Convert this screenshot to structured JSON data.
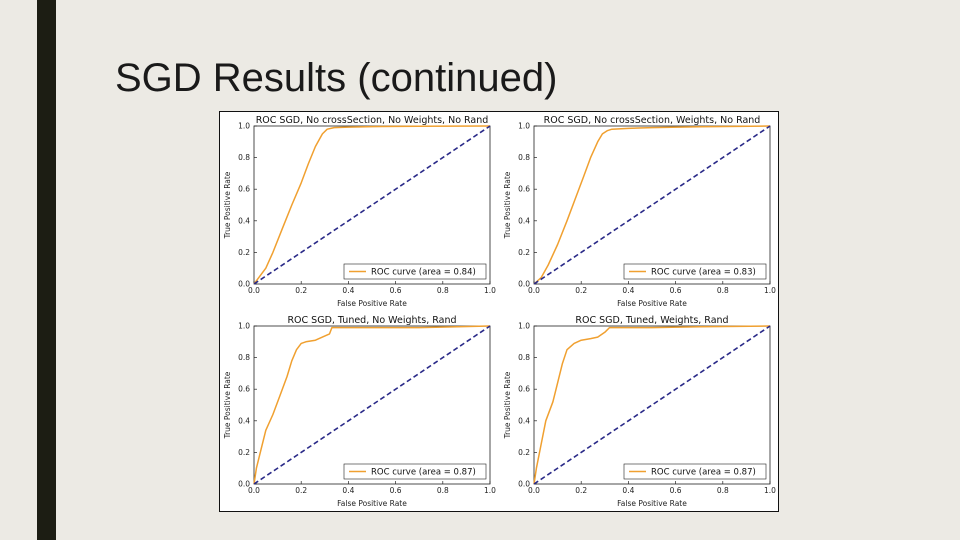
{
  "slide": {
    "title": "SGD Results (continued)"
  },
  "colors": {
    "background": "#ECEAE4",
    "side_bar": "#1C1D13",
    "roc": "#F0A030",
    "chance": "#2A2A88"
  },
  "chart_data": [
    {
      "type": "line",
      "title": "ROC SGD, No crossSection, No Weights, No Rand",
      "xlabel": "False Positive Rate",
      "ylabel": "True Positive Rate",
      "xlim": [
        0,
        1
      ],
      "ylim": [
        0,
        1
      ],
      "xticks": [
        "0.0",
        "0.2",
        "0.4",
        "0.6",
        "0.8",
        "1.0"
      ],
      "yticks": [
        "0.0",
        "0.2",
        "0.4",
        "0.6",
        "0.8",
        "1.0"
      ],
      "grid": false,
      "legend": "lower-right",
      "series": [
        {
          "name": "ROC curve (area = 0.84)",
          "color": "#F0A030",
          "x": [
            0,
            0.02,
            0.05,
            0.08,
            0.12,
            0.16,
            0.2,
            0.23,
            0.26,
            0.29,
            0.31,
            0.34,
            0.4,
            0.5,
            0.7,
            1.0
          ],
          "y": [
            0,
            0.04,
            0.1,
            0.2,
            0.35,
            0.5,
            0.64,
            0.76,
            0.87,
            0.95,
            0.98,
            0.99,
            0.993,
            0.996,
            0.998,
            1.0
          ]
        },
        {
          "name": "",
          "color": "#2A2A88",
          "dashed": true,
          "x": [
            0,
            1
          ],
          "y": [
            0,
            1
          ]
        }
      ]
    },
    {
      "type": "line",
      "title": "ROC SGD, No crossSection, Weights, No Rand",
      "xlabel": "False Positive Rate",
      "ylabel": "True Positive Rate",
      "xlim": [
        0,
        1
      ],
      "ylim": [
        0,
        1
      ],
      "xticks": [
        "0.0",
        "0.2",
        "0.4",
        "0.6",
        "0.8",
        "1.0"
      ],
      "yticks": [
        "0.0",
        "0.2",
        "0.4",
        "0.6",
        "0.8",
        "1.0"
      ],
      "grid": false,
      "legend": "lower-right",
      "series": [
        {
          "name": "ROC curve (area = 0.83)",
          "color": "#F0A030",
          "x": [
            0,
            0.03,
            0.06,
            0.1,
            0.14,
            0.18,
            0.21,
            0.24,
            0.27,
            0.29,
            0.31,
            0.33,
            0.4,
            0.5,
            0.7,
            1.0
          ],
          "y": [
            0,
            0.04,
            0.12,
            0.25,
            0.4,
            0.56,
            0.68,
            0.8,
            0.9,
            0.95,
            0.97,
            0.98,
            0.985,
            0.99,
            0.995,
            1.0
          ]
        },
        {
          "name": "",
          "color": "#2A2A88",
          "dashed": true,
          "x": [
            0,
            1
          ],
          "y": [
            0,
            1
          ]
        }
      ]
    },
    {
      "type": "line",
      "title": "ROC SGD, Tuned, No Weights, Rand",
      "xlabel": "False Positive Rate",
      "ylabel": "True Positive Rate",
      "xlim": [
        0,
        1
      ],
      "ylim": [
        0,
        1
      ],
      "xticks": [
        "0.0",
        "0.2",
        "0.4",
        "0.6",
        "0.8",
        "1.0"
      ],
      "yticks": [
        "0.0",
        "0.2",
        "0.4",
        "0.6",
        "0.8",
        "1.0"
      ],
      "grid": false,
      "legend": "lower-right",
      "series": [
        {
          "name": "ROC curve (area = 0.87)",
          "color": "#F0A030",
          "x": [
            0,
            0.01,
            0.03,
            0.05,
            0.08,
            0.11,
            0.14,
            0.16,
            0.18,
            0.2,
            0.22,
            0.26,
            0.29,
            0.32,
            0.33,
            0.5,
            0.7,
            1.0
          ],
          "y": [
            0,
            0.1,
            0.22,
            0.34,
            0.44,
            0.56,
            0.68,
            0.78,
            0.85,
            0.89,
            0.9,
            0.91,
            0.93,
            0.95,
            0.99,
            0.99,
            0.99,
            1.0
          ]
        },
        {
          "name": "",
          "color": "#2A2A88",
          "dashed": true,
          "x": [
            0,
            1
          ],
          "y": [
            0,
            1
          ]
        }
      ]
    },
    {
      "type": "line",
      "title": "ROC SGD, Tuned, Weights, Rand",
      "xlabel": "False Positive Rate",
      "ylabel": "True Positive Rate",
      "xlim": [
        0,
        1
      ],
      "ylim": [
        0,
        1
      ],
      "xticks": [
        "0.0",
        "0.2",
        "0.4",
        "0.6",
        "0.8",
        "1.0"
      ],
      "yticks": [
        "0.0",
        "0.2",
        "0.4",
        "0.6",
        "0.8",
        "1.0"
      ],
      "grid": false,
      "legend": "lower-right",
      "series": [
        {
          "name": "ROC curve (area = 0.87)",
          "color": "#F0A030",
          "x": [
            0,
            0.01,
            0.03,
            0.05,
            0.08,
            0.1,
            0.12,
            0.14,
            0.17,
            0.2,
            0.24,
            0.27,
            0.3,
            0.32,
            0.5,
            0.7,
            1.0
          ],
          "y": [
            0,
            0.1,
            0.25,
            0.4,
            0.52,
            0.64,
            0.76,
            0.85,
            0.89,
            0.91,
            0.92,
            0.93,
            0.96,
            0.99,
            0.99,
            0.995,
            1.0
          ]
        },
        {
          "name": "",
          "color": "#2A2A88",
          "dashed": true,
          "x": [
            0,
            1
          ],
          "y": [
            0,
            1
          ]
        }
      ]
    }
  ]
}
